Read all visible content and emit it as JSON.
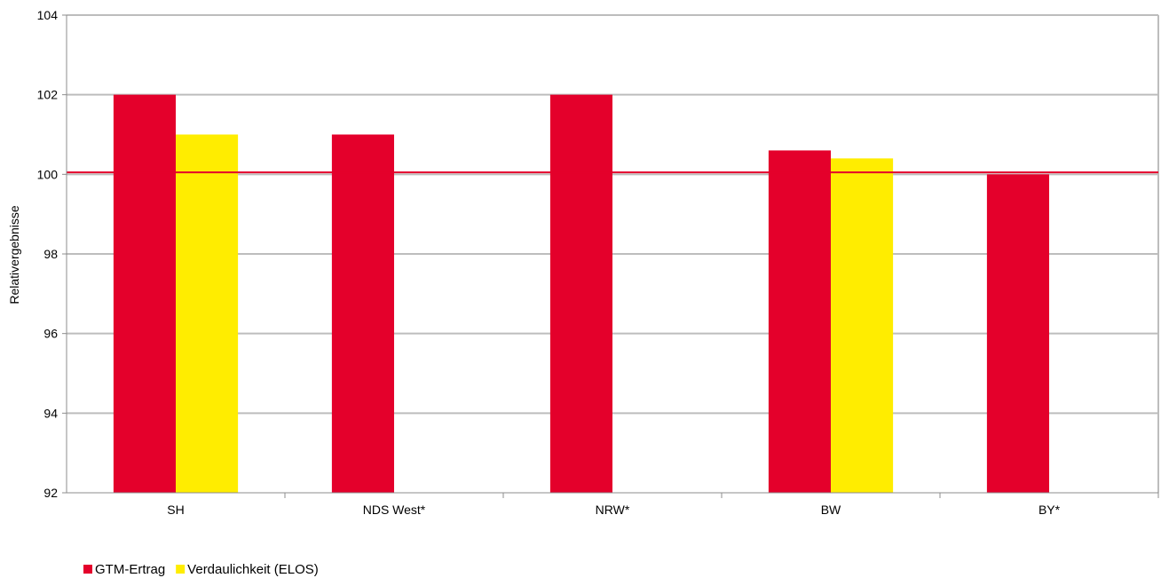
{
  "chart_data": {
    "type": "bar",
    "title": "",
    "xlabel": "",
    "ylabel": "Relativergebnisse",
    "categories": [
      "SH",
      "NDS West*",
      "NRW*",
      "BW",
      "BY*"
    ],
    "series": [
      {
        "name": "GTM-Ertrag",
        "color": "#e4002b",
        "values": [
          102,
          101,
          102,
          100.6,
          100
        ]
      },
      {
        "name": "Verdaulichkeit (ELOS)",
        "color": "#ffed00",
        "values": [
          101,
          null,
          null,
          100.4,
          null
        ]
      }
    ],
    "ylim": [
      92,
      104
    ],
    "yticks": [
      92,
      94,
      96,
      98,
      100,
      102,
      104
    ],
    "reference_line": {
      "value": 100.05,
      "color": "#e4002b"
    },
    "grid": true,
    "legend_position": "bottom-left"
  }
}
